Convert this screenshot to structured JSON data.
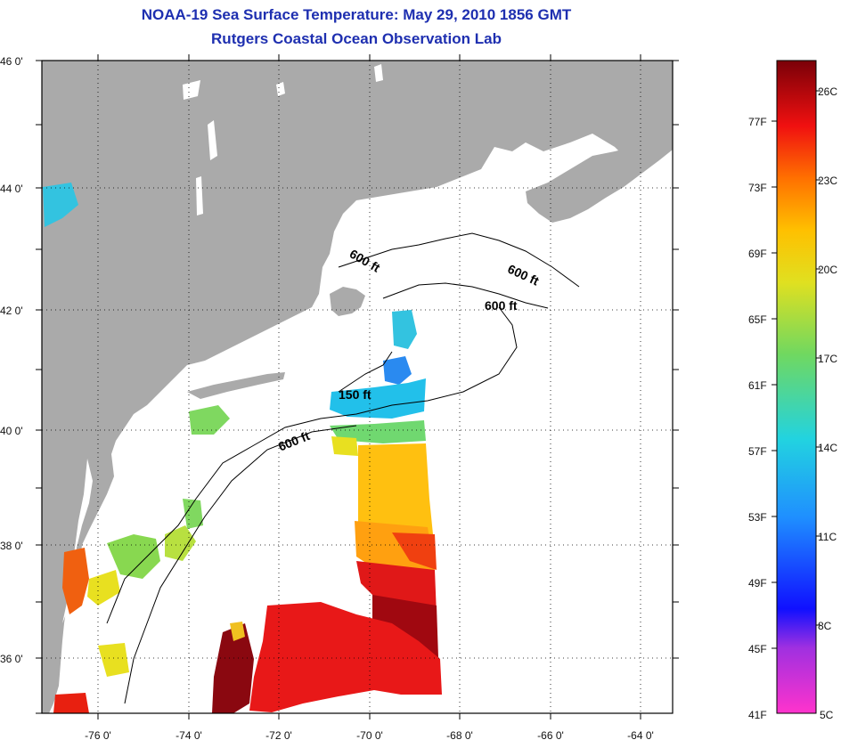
{
  "title": {
    "line1": "NOAA-19 Sea Surface Temperature:  May 29, 2010 1856 GMT",
    "line2": "Rutgers Coastal Ocean Observation Lab"
  },
  "map": {
    "lon_range": [
      -77,
      -63
    ],
    "lat_range": [
      35,
      46
    ],
    "lon_ticks": [
      "-76 0'",
      "-74 0'",
      "-72 0'",
      "-70 0'",
      "-68 0'",
      "-66 0'",
      "-64 0'"
    ],
    "lat_ticks": [
      "46 0'",
      "44 0'",
      "42 0'",
      "40 0'",
      "38 0'",
      "36 0'"
    ],
    "land_color": "#aaaaaa",
    "contour_labels": [
      "600 ft",
      "600 ft",
      "600 ft",
      "150 ft",
      "600 ft"
    ]
  },
  "colorbar": {
    "fahrenheit": [
      "77F",
      "73F",
      "69F",
      "65F",
      "61F",
      "57F",
      "53F",
      "49F",
      "45F",
      "41F"
    ],
    "celsius": [
      "26C",
      "23C",
      "20C",
      "17C",
      "14C",
      "11C",
      "8C",
      "5C"
    ]
  }
}
